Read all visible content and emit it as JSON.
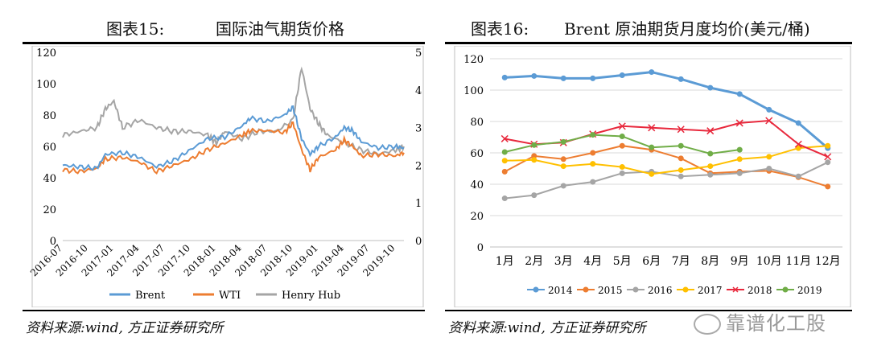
{
  "left_figure": {
    "number": "图表15:",
    "title": "国际油气期货价格",
    "source": "资料来源:wind, 方正证券研究所",
    "chart_data": {
      "type": "line",
      "title": "国际油气期货价格",
      "x_ticks": [
        "2016-07",
        "2016-10",
        "2017-01",
        "2017-04",
        "2017-07",
        "2017-10",
        "2018-01",
        "2018-04",
        "2018-07",
        "2018-10",
        "2019-01",
        "2019-04",
        "2019-07",
        "2019-10"
      ],
      "ylim_left": [
        0,
        120
      ],
      "y_ticks_left": [
        0,
        20,
        40,
        60,
        80,
        100,
        120
      ],
      "ylim_right": [
        0,
        5
      ],
      "y_ticks_right": [
        0,
        1,
        2,
        3,
        4,
        5
      ],
      "legend": "bottom",
      "grid": false,
      "series": [
        {
          "name": "Brent",
          "axis": "left",
          "color": "#5b9bd5",
          "x": [
            "2016-07",
            "2016-09",
            "2016-11",
            "2016-12",
            "2017-02",
            "2017-04",
            "2017-06",
            "2017-08",
            "2017-10",
            "2017-12",
            "2018-02",
            "2018-04",
            "2018-05",
            "2018-07",
            "2018-09",
            "2018-10",
            "2018-11",
            "2018-12",
            "2019-01",
            "2019-03",
            "2019-04",
            "2019-05",
            "2019-06",
            "2019-08",
            "2019-10",
            "2019-11"
          ],
          "values": [
            48,
            47,
            46,
            55,
            56,
            53,
            47,
            51,
            58,
            65,
            66,
            73,
            78,
            76,
            80,
            85,
            65,
            55,
            60,
            66,
            72,
            70,
            63,
            59,
            60,
            59
          ]
        },
        {
          "name": "WTI",
          "axis": "left",
          "color": "#ed7d31",
          "x": [
            "2016-07",
            "2016-09",
            "2016-11",
            "2016-12",
            "2017-02",
            "2017-04",
            "2017-06",
            "2017-08",
            "2017-10",
            "2017-12",
            "2018-02",
            "2018-04",
            "2018-05",
            "2018-07",
            "2018-09",
            "2018-10",
            "2018-11",
            "2018-12",
            "2019-01",
            "2019-03",
            "2019-04",
            "2019-05",
            "2019-06",
            "2019-08",
            "2019-10",
            "2019-11"
          ],
          "values": [
            45,
            44,
            46,
            52,
            53,
            50,
            44,
            48,
            52,
            58,
            62,
            67,
            70,
            70,
            69,
            75,
            58,
            45,
            53,
            58,
            64,
            60,
            54,
            55,
            54,
            56
          ]
        },
        {
          "name": "Henry Hub",
          "axis": "right",
          "color": "#a5a5a5",
          "x": [
            "2016-07",
            "2016-09",
            "2016-11",
            "2016-12",
            "2017-01",
            "2017-02",
            "2017-04",
            "2017-06",
            "2017-08",
            "2017-10",
            "2017-12",
            "2018-01",
            "2018-02",
            "2018-04",
            "2018-06",
            "2018-08",
            "2018-10",
            "2018-11",
            "2018-12",
            "2019-01",
            "2019-02",
            "2019-04",
            "2019-06",
            "2019-08",
            "2019-10",
            "2019-11"
          ],
          "values": [
            2.8,
            2.9,
            3.0,
            3.5,
            3.7,
            3.0,
            3.2,
            3.0,
            2.9,
            2.9,
            2.8,
            2.6,
            2.9,
            2.7,
            2.9,
            2.9,
            3.2,
            4.6,
            3.5,
            3.1,
            2.8,
            2.6,
            2.4,
            2.3,
            2.4,
            2.5
          ]
        }
      ]
    }
  },
  "right_figure": {
    "number": "图表16:",
    "title": "Brent 原油期货月度均价(美元/桶)",
    "source": "资料来源:wind, 方正证券研究所",
    "watermark": "靠谱化工股",
    "chart_data": {
      "type": "line",
      "title": "Brent 原油期货月度均价(美元/桶)",
      "categories": [
        "1月",
        "2月",
        "3月",
        "4月",
        "5月",
        "6月",
        "7月",
        "8月",
        "9月",
        "10月",
        "11月",
        "12月"
      ],
      "ylim": [
        0,
        120
      ],
      "y_ticks": [
        0,
        20,
        40,
        60,
        80,
        100,
        120
      ],
      "grid": true,
      "legend": "bottom",
      "series": [
        {
          "name": "2014",
          "color": "#5b9bd5",
          "marker": "circle",
          "values": [
            108,
            109,
            107.5,
            107.5,
            109.5,
            111.5,
            107,
            101.5,
            97.5,
            87.5,
            79,
            63
          ]
        },
        {
          "name": "2015",
          "color": "#ed7d31",
          "marker": "circle",
          "values": [
            48,
            58,
            56,
            60,
            64.5,
            62,
            56.5,
            47,
            48,
            48.5,
            44.5,
            38.5
          ]
        },
        {
          "name": "2016",
          "color": "#a5a5a5",
          "marker": "circle",
          "values": [
            31,
            33,
            39,
            41.5,
            47,
            48,
            45,
            46,
            47,
            50,
            45,
            54
          ]
        },
        {
          "name": "2017",
          "color": "#ffc000",
          "marker": "circle",
          "values": [
            55,
            55.5,
            51.5,
            53,
            51,
            46.5,
            49,
            51.5,
            56,
            57.5,
            63,
            64.5
          ]
        },
        {
          "name": "2018",
          "color": "#e8283c",
          "marker": "cross",
          "values": [
            69,
            65.5,
            66.5,
            72,
            77,
            76,
            75,
            74,
            79,
            80.5,
            65.5,
            57.5
          ]
        },
        {
          "name": "2019",
          "color": "#70ad47",
          "marker": "circle",
          "values": [
            60.5,
            65,
            67,
            71.5,
            70.5,
            63.5,
            64.5,
            59.5,
            62,
            null,
            null,
            null
          ]
        }
      ]
    }
  }
}
